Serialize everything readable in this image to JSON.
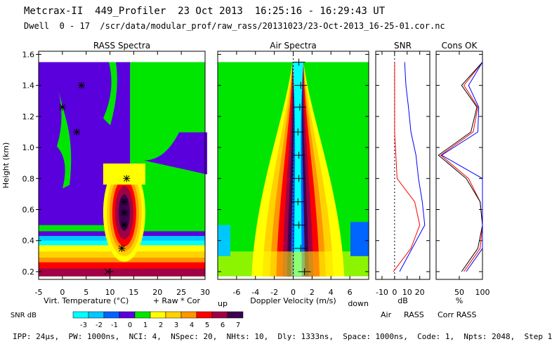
{
  "header": {
    "title": "Metcrax-II  449_Profiler  23 Oct 2013  16:25:16 - 16:29:43 UT",
    "dwell": "Dwell  0 - 17  /scr/data/modular_prof/raw_rass/20131023/23-Oct-2013_16-25-01.cor.nc"
  },
  "footer": "IPP: 24μs,  PW: 1000ns,  NCI: 4,  NSpec: 20,  NHts: 10,  Dly: 1333ns,  Space: 1000ns,  Code: 1,  Npts: 2048,  Step 1",
  "colors": {
    "levels": [
      "#00ffff",
      "#00c8ff",
      "#0064ff",
      "#5a00dc",
      "#00e600",
      "#ffff00",
      "#ffd200",
      "#ff9600",
      "#ff0000",
      "#a00046",
      "#3c0050"
    ],
    "air_line": "#0000ff",
    "rass_line": "#ff0000",
    "corr_line": "#000000"
  },
  "chart_data": [
    {
      "type": "heatmap",
      "title": "RASS Spectra",
      "xlabel": "Virt. Temperature (°C)",
      "xlabel_suffix": "+ Raw  * Cor",
      "ylabel": "Height (km)",
      "xlim": [
        -5,
        30
      ],
      "ylim": [
        0.15,
        1.62
      ],
      "xticks": [
        "-5",
        "0",
        "5",
        "10",
        "15",
        "20",
        "25",
        "30"
      ],
      "yticks": [
        "0.2",
        "0.4",
        "0.6",
        "0.8",
        "1.0",
        "1.2",
        "1.4",
        "1.6"
      ],
      "raw_points": [
        [
          10,
          0.2
        ],
        [
          12.5,
          0.35
        ],
        [
          13,
          0.5
        ],
        [
          13,
          0.58
        ],
        [
          13,
          0.65
        ],
        [
          13.5,
          0.8
        ],
        [
          3,
          1.1
        ],
        [
          0,
          1.26
        ],
        [
          4,
          1.4
        ]
      ],
      "cor_points": [
        [
          9.5,
          0.2
        ],
        [
          12.5,
          0.35
        ],
        [
          13,
          0.5
        ],
        [
          13,
          0.58
        ],
        [
          13,
          0.65
        ],
        [
          13.5,
          0.8
        ],
        [
          3,
          1.1
        ],
        [
          0,
          1.26
        ],
        [
          4,
          1.4
        ]
      ]
    },
    {
      "type": "heatmap",
      "title": "Air Spectra",
      "xlabel": "Doppler Velocity (m/s)",
      "xlabel_left": "up",
      "xlabel_right": "down",
      "xlim": [
        -8,
        8
      ],
      "ylim": [
        0.15,
        1.62
      ],
      "xticks": [
        "-6",
        "-4",
        "-2",
        "0",
        "2",
        "4",
        "6"
      ],
      "velocity_points": [
        [
          1.2,
          0.2
        ],
        [
          0.8,
          0.35
        ],
        [
          0.6,
          0.5
        ],
        [
          0.5,
          0.65
        ],
        [
          0.6,
          0.8
        ],
        [
          0.6,
          0.95
        ],
        [
          0.5,
          1.1
        ],
        [
          0.7,
          1.26
        ],
        [
          0.8,
          1.4
        ],
        [
          0.6,
          1.55
        ]
      ]
    },
    {
      "type": "line",
      "title": "SNR",
      "xlabel": "dB",
      "xlim": [
        -15,
        28
      ],
      "xticks": [
        "-10",
        "0",
        "10",
        "20"
      ],
      "heights": [
        0.2,
        0.35,
        0.5,
        0.65,
        0.8,
        0.95,
        1.1,
        1.26,
        1.4,
        1.55
      ],
      "series": [
        {
          "name": "Air",
          "values": [
            4,
            14,
            24,
            22,
            19,
            17,
            13,
            11,
            9,
            8
          ]
        },
        {
          "name": "RASS",
          "values": [
            -1,
            13,
            20,
            16,
            2,
            1,
            0,
            0,
            0,
            0
          ]
        }
      ]
    },
    {
      "type": "line",
      "title": "Cons OK",
      "xlabel": "%",
      "xlim": [
        0,
        100
      ],
      "xticks": [
        "50",
        "100"
      ],
      "heights": [
        0.2,
        0.35,
        0.5,
        0.65,
        0.8,
        0.95,
        1.1,
        1.26,
        1.4,
        1.55
      ],
      "series": [
        {
          "name": "RASS",
          "values": [
            60,
            95,
            100,
            95,
            70,
            10,
            80,
            90,
            60,
            100
          ]
        },
        {
          "name": "Corr RASS",
          "values": [
            55,
            90,
            100,
            95,
            65,
            5,
            75,
            88,
            55,
            100
          ]
        },
        {
          "name": "Air",
          "values": [
            65,
            100,
            100,
            100,
            100,
            12,
            90,
            92,
            70,
            100
          ]
        }
      ]
    }
  ],
  "legend": {
    "title": "SNR dB",
    "labels": [
      "-3",
      "-2",
      "-1",
      "0",
      "1",
      "2",
      "3",
      "4",
      "5",
      "6",
      "7"
    ]
  },
  "bottom_legend": {
    "air": "Air",
    "rass": "RASS",
    "corr": "Corr RASS"
  }
}
